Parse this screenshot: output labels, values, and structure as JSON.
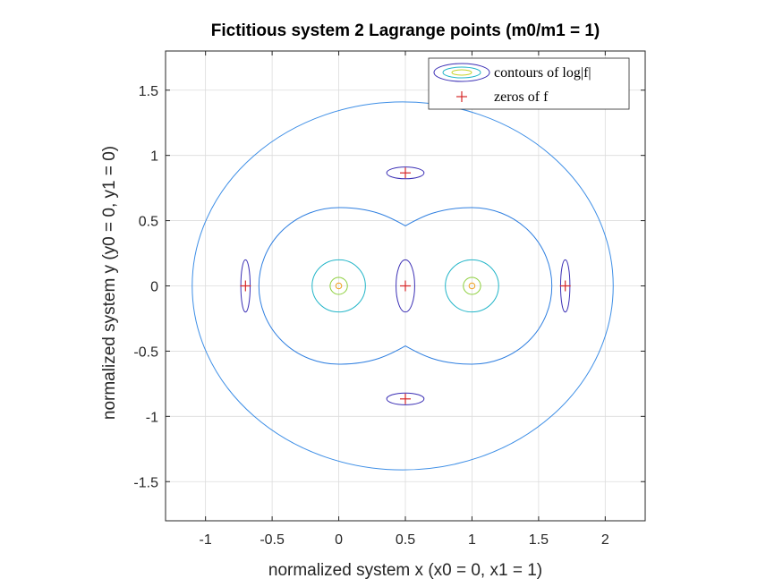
{
  "chart_data": {
    "type": "contour",
    "title": "Fictitious system 2 Lagrange points (m0/m1 = 1)",
    "xlabel": "normalized system x (x0 = 0, x1 = 1)",
    "ylabel": "normalized system y (y0 = 0, y1 = 0)",
    "xlim": [
      -1.3,
      2.3
    ],
    "ylim": [
      -1.8,
      1.8
    ],
    "xticks": [
      -1,
      -0.5,
      0,
      0.5,
      1,
      1.5,
      2
    ],
    "xtick_labels": [
      "-1",
      "-0.5",
      "0",
      "0.5",
      "1",
      "1.5",
      "2"
    ],
    "yticks": [
      -1.5,
      -1,
      -0.5,
      0,
      0.5,
      1,
      1.5
    ],
    "ytick_labels": [
      "-1.5",
      "-1",
      "-0.5",
      "0",
      "0.5",
      "1",
      "1.5"
    ],
    "grid": true,
    "legend_position": "top-right",
    "legend": [
      {
        "label": "contours of log|f|",
        "marker": "contour"
      },
      {
        "label": "zeros of f",
        "marker": "+",
        "color": "#d62728"
      }
    ],
    "zeros": [
      {
        "x": -0.7,
        "y": 0
      },
      {
        "x": 0.5,
        "y": 0
      },
      {
        "x": 1.7,
        "y": 0
      },
      {
        "x": 0.5,
        "y": 0.866
      },
      {
        "x": 0.5,
        "y": -0.866
      }
    ],
    "contour_colors": {
      "outer": "#3d8ee6",
      "inner": "#2f7fe0",
      "dark": "#3b2fb5",
      "ring": "#22b5c8",
      "small": "#8ccf3a",
      "core": "#f0a020",
      "zero_marker": "#d62728"
    }
  }
}
